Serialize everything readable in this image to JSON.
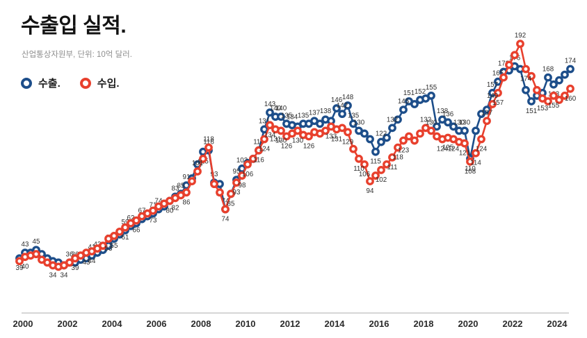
{
  "header": {
    "title": "수출입 실적.",
    "subtitle": "산업통상자원부, 단위: 10억 달러."
  },
  "legend": {
    "items": [
      {
        "label": "수출.",
        "color": "#1d4e8a"
      },
      {
        "label": "수입.",
        "color": "#e8402d"
      }
    ]
  },
  "chart_data": {
    "type": "line",
    "title": "수출입 실적.",
    "source_note": "산업통상자원부, 단위: 10억 달러.",
    "unit": "10억 달러 (billion USD)",
    "x_unit": "quarter",
    "x_start_year": 2000,
    "x_end_year": 2024,
    "x_tick_years": [
      2000,
      2002,
      2004,
      2006,
      2008,
      2010,
      2012,
      2014,
      2016,
      2018,
      2020,
      2022,
      2024
    ],
    "ylim": [
      0,
      220
    ],
    "grid": false,
    "legend_position": "top-left",
    "series": [
      {
        "name": "수출.",
        "color": "#1d4e8a",
        "values": [
          39,
          43,
          43,
          45,
          42,
          39,
          37,
          36,
          34,
          36,
          36,
          38,
          39,
          41,
          43,
          45,
          48,
          53,
          56,
          59,
          62,
          64,
          67,
          69,
          71,
          74,
          76,
          80,
          83,
          85,
          91,
          96,
          106,
          115,
          116,
          93,
          92,
          74,
          85,
          95,
          103,
          107,
          110,
          116,
          131,
          143,
          140,
          140,
          135,
          134,
          133,
          135,
          135,
          137,
          135,
          138,
          137,
          146,
          142,
          148,
          135,
          130,
          128,
          124,
          115,
          122,
          125,
          132,
          138,
          145,
          151,
          149,
          152,
          153,
          155,
          133,
          138,
          136,
          133,
          130,
          130,
          110,
          130,
          142,
          145,
          157,
          165,
          172,
          173,
          176,
          174,
          159,
          151,
          155,
          157,
          168,
          163,
          166,
          170,
          174
        ],
        "labeled": [
          [
            0,
            "b"
          ],
          [
            1,
            "a"
          ],
          [
            3,
            "a"
          ],
          [
            9,
            "a"
          ],
          [
            10,
            "a"
          ],
          [
            13,
            "a"
          ],
          [
            14,
            "a"
          ],
          [
            16,
            "a"
          ],
          [
            19,
            "a"
          ],
          [
            20,
            "a"
          ],
          [
            22,
            "a"
          ],
          [
            24,
            "a"
          ],
          [
            25,
            "a"
          ],
          [
            28,
            "a"
          ],
          [
            29,
            "a"
          ],
          [
            30,
            "a"
          ],
          [
            33,
            "b"
          ],
          [
            34,
            "a"
          ],
          [
            35,
            "a"
          ],
          [
            36,
            "b"
          ],
          [
            37,
            "a"
          ],
          [
            39,
            "a"
          ],
          [
            40,
            "a"
          ],
          [
            43,
            "a"
          ],
          [
            44,
            "a"
          ],
          [
            45,
            "a"
          ],
          [
            46,
            "a"
          ],
          [
            47,
            "a"
          ],
          [
            48,
            "a"
          ],
          [
            49,
            "a"
          ],
          [
            51,
            "a"
          ],
          [
            53,
            "a"
          ],
          [
            55,
            "a"
          ],
          [
            57,
            "a"
          ],
          [
            58,
            "a"
          ],
          [
            59,
            "a"
          ],
          [
            60,
            "a"
          ],
          [
            61,
            "a"
          ],
          [
            64,
            "b"
          ],
          [
            65,
            "a"
          ],
          [
            67,
            "a"
          ],
          [
            69,
            "a"
          ],
          [
            70,
            "a"
          ],
          [
            72,
            "a"
          ],
          [
            74,
            "a"
          ],
          [
            76,
            "a"
          ],
          [
            77,
            "a"
          ],
          [
            79,
            "a"
          ],
          [
            80,
            "a"
          ],
          [
            81,
            "b"
          ],
          [
            85,
            "a"
          ],
          [
            86,
            "a"
          ],
          [
            87,
            "a"
          ],
          [
            89,
            "a"
          ],
          [
            92,
            "b"
          ],
          [
            95,
            "a"
          ],
          [
            96,
            "b"
          ],
          [
            99,
            "a"
          ]
        ]
      },
      {
        "name": "수입.",
        "color": "#e8402d",
        "values": [
          37,
          40,
          41,
          42,
          38,
          36,
          34,
          33,
          34,
          36,
          39,
          41,
          43,
          44,
          46,
          48,
          53,
          55,
          58,
          61,
          64,
          66,
          69,
          71,
          73,
          76,
          78,
          80,
          82,
          84,
          86,
          94,
          101,
          110,
          118,
          92,
          86,
          74,
          85,
          93,
          98,
          106,
          110,
          116,
          124,
          134,
          131,
          130,
          126,
          128,
          130,
          127,
          126,
          129,
          128,
          130,
          133,
          131,
          132,
          129,
          117,
          110,
          106,
          94,
          98,
          102,
          106,
          111,
          118,
          123,
          126,
          123,
          128,
          132,
          130,
          126,
          124,
          125,
          124,
          122,
          121,
          108,
          114,
          124,
          137,
          149,
          157,
          168,
          177,
          184,
          192,
          174,
          169,
          159,
          153,
          151,
          155,
          152,
          155,
          160
        ],
        "labeled": [
          [
            1,
            "b"
          ],
          [
            6,
            "b"
          ],
          [
            8,
            "b"
          ],
          [
            10,
            "b"
          ],
          [
            12,
            "b"
          ],
          [
            13,
            "b"
          ],
          [
            16,
            "b"
          ],
          [
            17,
            "b"
          ],
          [
            19,
            "b"
          ],
          [
            21,
            "b"
          ],
          [
            24,
            "b"
          ],
          [
            27,
            "b"
          ],
          [
            28,
            "b"
          ],
          [
            30,
            "b"
          ],
          [
            32,
            "a"
          ],
          [
            34,
            "a"
          ],
          [
            37,
            "b"
          ],
          [
            38,
            "b"
          ],
          [
            39,
            "b"
          ],
          [
            40,
            "b"
          ],
          [
            41,
            "b"
          ],
          [
            43,
            "b"
          ],
          [
            44,
            "b"
          ],
          [
            45,
            "b"
          ],
          [
            46,
            "b"
          ],
          [
            47,
            "b"
          ],
          [
            48,
            "b"
          ],
          [
            50,
            "b"
          ],
          [
            52,
            "b"
          ],
          [
            56,
            "b"
          ],
          [
            57,
            "b"
          ],
          [
            59,
            "b"
          ],
          [
            61,
            "b"
          ],
          [
            62,
            "b"
          ],
          [
            63,
            "b"
          ],
          [
            65,
            "b"
          ],
          [
            67,
            "b"
          ],
          [
            68,
            "b"
          ],
          [
            69,
            "b"
          ],
          [
            73,
            "a"
          ],
          [
            74,
            "a"
          ],
          [
            76,
            "b"
          ],
          [
            77,
            "b"
          ],
          [
            78,
            "b"
          ],
          [
            80,
            "b"
          ],
          [
            81,
            "b"
          ],
          [
            82,
            "b"
          ],
          [
            83,
            "b"
          ],
          [
            84,
            "a"
          ],
          [
            85,
            "a"
          ],
          [
            86,
            "b"
          ],
          [
            90,
            "a"
          ],
          [
            91,
            "b"
          ],
          [
            94,
            "b"
          ],
          [
            96,
            "b"
          ],
          [
            99,
            "b"
          ]
        ]
      }
    ]
  }
}
